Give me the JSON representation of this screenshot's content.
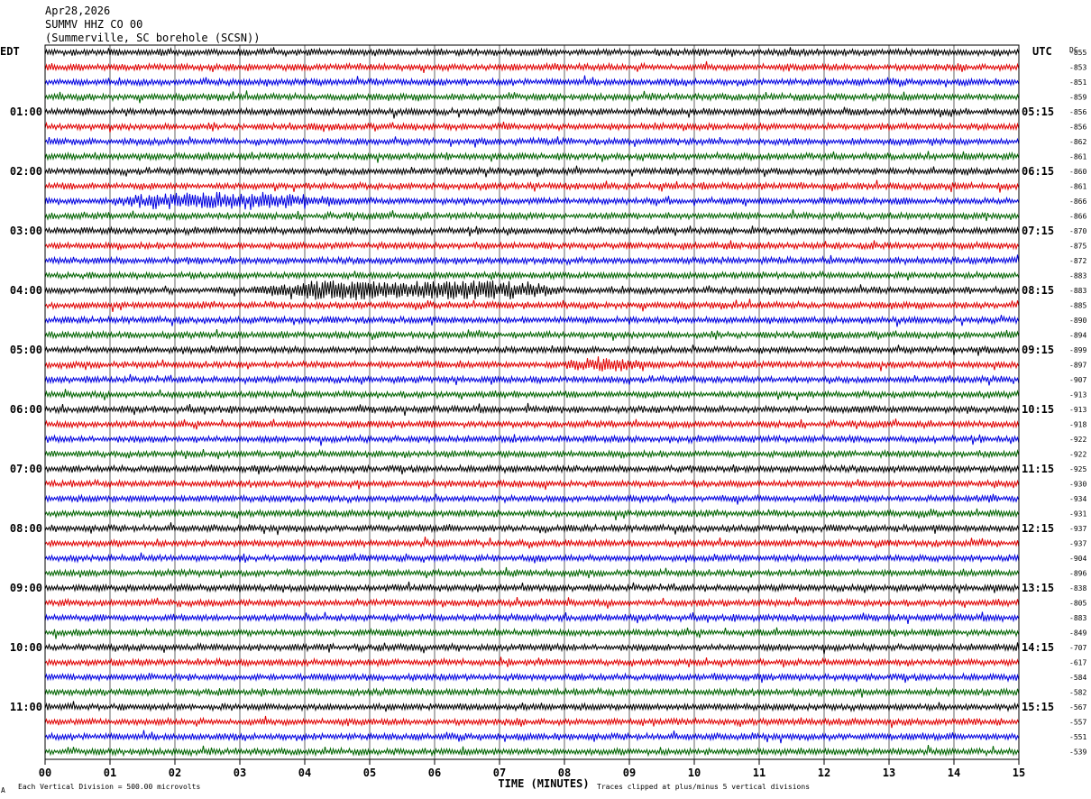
{
  "header": {
    "date": "Apr28,2026",
    "station": "SUMMV HHZ CO 00",
    "location": "(Summerville, SC borehole (SCSN))"
  },
  "left_axis_title": "EDT",
  "right_axis_title": "UTC",
  "dc_axis_title": "DC",
  "footer": {
    "scale_note": "Each Vertical Division =  500.00 microvolts",
    "clip_note": "Traces clipped at plus/minus 5 vertical divisions",
    "corner_mark": "A"
  },
  "colors": {
    "trace_cycle": [
      "#000000",
      "#e00000",
      "#0000e0",
      "#006400"
    ],
    "grid": "#000000",
    "background": "#ffffff"
  },
  "chart_data": {
    "type": "line",
    "title": "SUMMV HHZ CO 00",
    "xlabel": "TIME (MINUTES)",
    "xlim": [
      0,
      15
    ],
    "x_tick_labels": [
      "00",
      "01",
      "02",
      "03",
      "04",
      "05",
      "06",
      "07",
      "08",
      "09",
      "10",
      "11",
      "12",
      "13",
      "14",
      "15"
    ],
    "row_count": 48,
    "minutes_per_row": 15,
    "left_hour_labels": [
      "01:00",
      "02:00",
      "03:00",
      "04:00",
      "05:00",
      "06:00",
      "07:00",
      "08:00",
      "09:00",
      "10:00",
      "11:00"
    ],
    "right_hour_labels": [
      "05:15",
      "06:15",
      "07:15",
      "08:15",
      "09:15",
      "10:15",
      "11:15",
      "12:15",
      "13:15",
      "14:15",
      "15:15"
    ],
    "hour_label_rows": [
      4,
      8,
      12,
      16,
      20,
      24,
      28,
      32,
      36,
      40,
      44
    ],
    "dc_offsets": [
      -855,
      -853,
      -851,
      -859,
      -856,
      -856,
      -862,
      -861,
      -860,
      -861,
      -866,
      -866,
      -870,
      -875,
      -872,
      -883,
      -883,
      -885,
      -890,
      -894,
      -899,
      -897,
      -907,
      -913,
      -913,
      -918,
      -922,
      -922,
      -925,
      -930,
      -934,
      -931,
      -937,
      -937,
      -904,
      -896,
      -838,
      -805,
      -883,
      -849,
      -707,
      -617,
      -584,
      -582,
      -567,
      -557,
      -551,
      -539
    ],
    "events": [
      {
        "row": 10,
        "start_min": 1.0,
        "end_min": 4.6,
        "level": 2.0
      },
      {
        "row": 16,
        "start_min": 3.2,
        "end_min": 8.0,
        "level": 3.5
      },
      {
        "row": 21,
        "start_min": 8.0,
        "end_min": 9.3,
        "level": 1.4
      }
    ]
  }
}
